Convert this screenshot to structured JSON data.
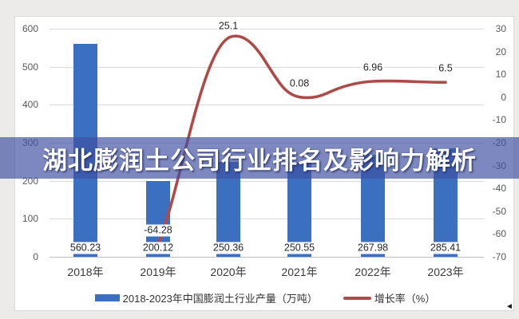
{
  "title": {
    "text": "湖北膨润土公司行业排名及影响力解析"
  },
  "legend": [
    {
      "label": "2018-2023年中国膨润土行业产量（万吨）",
      "type": "bar"
    },
    {
      "label": "增长率（%）",
      "type": "line"
    }
  ],
  "colors": {
    "bar": "#3b70c0",
    "line": "#b04a48",
    "band": "#3e50a0",
    "band_opacity": 0.68,
    "grid": "#d9d9d9",
    "axis_line": "#bfbfbf"
  },
  "cursor_glyph": "◄",
  "chart_data": {
    "type": "combo",
    "categories": [
      "2018年",
      "2019年",
      "2020年",
      "2021年",
      "2022年",
      "2023年"
    ],
    "series": [
      {
        "name": "2018-2023年中国膨润土行业产量（万吨）",
        "type": "bar",
        "axis": "left",
        "values": [
          560.23,
          200.12,
          250.36,
          250.55,
          267.98,
          285.41
        ],
        "labels": [
          "560.23",
          "200.12",
          "250.36",
          "250.55",
          "267.98",
          "285.41"
        ]
      },
      {
        "name": "增长率（%）",
        "type": "line",
        "axis": "right",
        "values": [
          null,
          -64.28,
          25.1,
          0.08,
          6.96,
          6.5
        ],
        "labels": [
          null,
          "-64.28",
          "25.1",
          "0.08",
          "6.96",
          "6.5"
        ]
      }
    ],
    "left_axis": {
      "min": 0,
      "max": 600,
      "ticks": [
        "600",
        "500",
        "400",
        "300",
        "200",
        "100",
        "0"
      ]
    },
    "right_axis": {
      "min": -70,
      "max": 30,
      "ticks": [
        "30",
        "20",
        "10",
        "0",
        "-10",
        "-20",
        "-30",
        "-40",
        "-50",
        "-60",
        "-70"
      ]
    },
    "grid": true,
    "legend_position": "bottom"
  }
}
